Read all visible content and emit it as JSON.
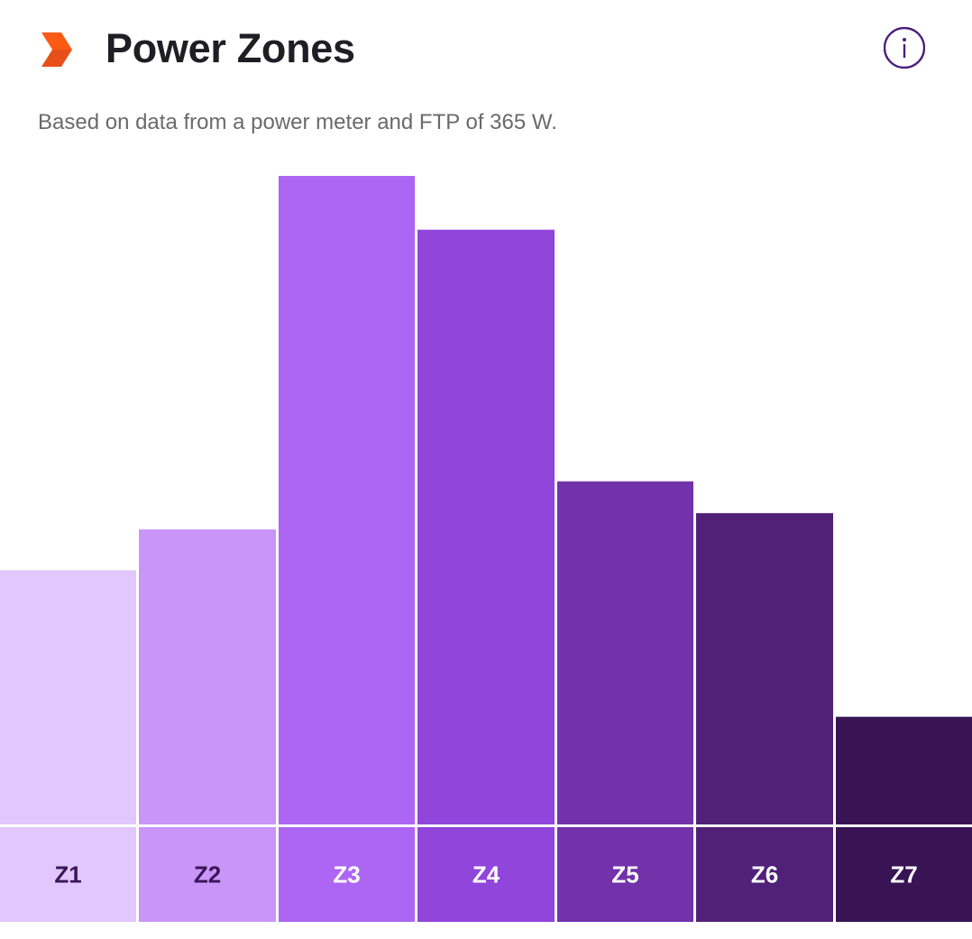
{
  "header": {
    "title": "Power Zones",
    "subtitle": "Based on data from a power meter and FTP of 365 W.",
    "logo_icon": "orange-chevron-icon",
    "info_icon": "info-circle-icon",
    "logo_color": "#e8501a",
    "info_color": "#4b1f78"
  },
  "chart_data": {
    "type": "bar",
    "title": "Power Zones",
    "subtitle": "Based on data from a power meter and FTP of 365 W.",
    "xlabel": "",
    "ylabel": "",
    "value_unit": "relative time in zone (% of largest zone)",
    "ylim": [
      0,
      100
    ],
    "grid": false,
    "legend": "none",
    "categories": [
      "Z1",
      "Z2",
      "Z3",
      "Z4",
      "Z5",
      "Z6",
      "Z7"
    ],
    "values": [
      39.2,
      45.5,
      100,
      91.7,
      52.9,
      48.0,
      16.6
    ],
    "colors": [
      "#e1c7fb",
      "#c996f8",
      "#ad66f3",
      "#9045db",
      "#7232aa",
      "#512178",
      "#381454"
    ],
    "label_colors": [
      "#3a1558",
      "#3a1558",
      "#ffffff",
      "#ffffff",
      "#ffffff",
      "#ffffff",
      "#ffffff"
    ]
  }
}
